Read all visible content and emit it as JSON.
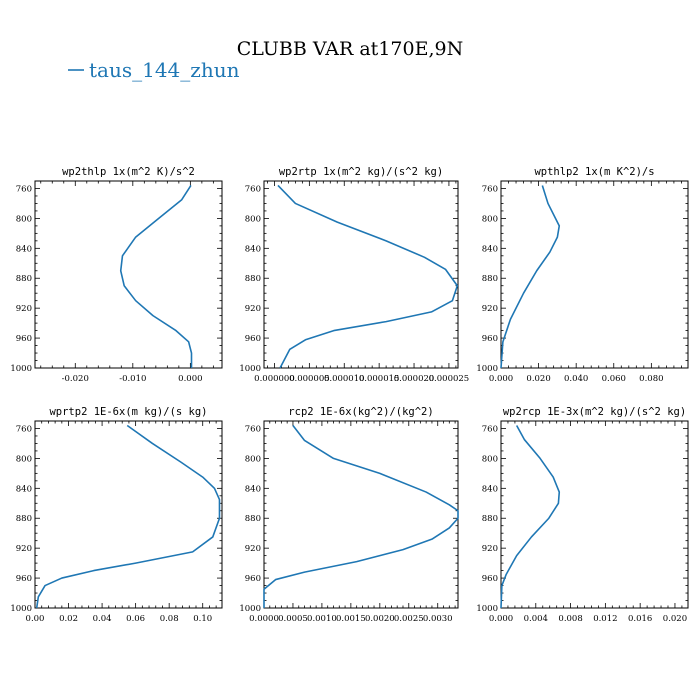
{
  "figure": {
    "title": "CLUBB VAR at170E,9N",
    "legend": {
      "label": "taus_144_zhun",
      "color": "#1f77b4"
    }
  },
  "chart_data": [
    {
      "type": "line",
      "title": "wp2thlp  1x(m^2 K)/s^2",
      "series_name": "taus_144_zhun",
      "color": "#1f77b4",
      "xlim": [
        -0.027,
        0.0055
      ],
      "ylim": [
        1000,
        750
      ],
      "x_ticks": [
        -0.02,
        -0.01,
        0.0
      ],
      "x_tick_labels": [
        "-0.020",
        "-0.010",
        "0.000"
      ],
      "y_ticks": [
        760,
        800,
        840,
        880,
        920,
        960,
        1000
      ],
      "y_tick_labels": [
        "760",
        "800",
        "840",
        "880",
        "920",
        "960",
        "1000"
      ],
      "x": [
        0.0001,
        -0.0015,
        -0.0055,
        -0.0095,
        -0.0118,
        -0.0121,
        -0.0115,
        -0.0095,
        -0.0065,
        -0.0025,
        -0.0003,
        0.0002,
        0.0002
      ],
      "y": [
        756,
        775,
        800,
        825,
        850,
        870,
        890,
        910,
        930,
        950,
        965,
        980,
        1000
      ]
    },
    {
      "type": "line",
      "title": "wp2rtp  1x(m^2 kg)/(s^2 kg)",
      "series_name": "taus_144_zhun",
      "color": "#1f77b4",
      "xlim": [
        -1.5e-06,
        2.63e-05
      ],
      "ylim": [
        1000,
        750
      ],
      "x_ticks": [
        0.0,
        5e-06,
        1e-05,
        1.5e-05,
        2e-05,
        2.5e-05
      ],
      "x_tick_labels": [
        "0.000000",
        "0.000005",
        "0.000010",
        "0.000015",
        "0.000020",
        "0.000025"
      ],
      "y_ticks": [
        760,
        800,
        840,
        880,
        920,
        960,
        1000
      ],
      "y_tick_labels": [
        "760",
        "800",
        "840",
        "880",
        "920",
        "960",
        "1000"
      ],
      "x": [
        5e-07,
        3e-06,
        9e-06,
        1.6e-05,
        2.15e-05,
        2.45e-05,
        2.62e-05,
        2.55e-05,
        2.25e-05,
        1.6e-05,
        8.5e-06,
        4.5e-06,
        2.2e-06,
        8e-07
      ],
      "y": [
        756,
        780,
        805,
        830,
        852,
        868,
        890,
        910,
        925,
        938,
        950,
        962,
        975,
        1000
      ]
    },
    {
      "type": "line",
      "title": "wpthlp2  1x(m K^2)/s",
      "series_name": "taus_144_zhun",
      "color": "#1f77b4",
      "xlim": [
        0.0,
        0.0995
      ],
      "ylim": [
        1000,
        750
      ],
      "x_ticks": [
        0.0,
        0.02,
        0.04,
        0.06,
        0.08
      ],
      "x_tick_labels": [
        "0.000",
        "0.020",
        "0.040",
        "0.060",
        "0.080"
      ],
      "y_ticks": [
        760,
        800,
        840,
        880,
        920,
        960,
        1000
      ],
      "y_tick_labels": [
        "760",
        "800",
        "840",
        "880",
        "920",
        "960",
        "1000"
      ],
      "x": [
        0.022,
        0.025,
        0.029,
        0.031,
        0.03,
        0.026,
        0.019,
        0.012,
        0.005,
        0.001,
        0.0
      ],
      "y": [
        756,
        780,
        800,
        810,
        825,
        845,
        870,
        900,
        935,
        965,
        1000
      ]
    },
    {
      "type": "line",
      "title": "wprtp2  1E-6x(m kg)/(s kg)",
      "series_name": "taus_144_zhun",
      "color": "#1f77b4",
      "xlim": [
        0.0,
        0.1115
      ],
      "ylim": [
        1000,
        750
      ],
      "x_ticks": [
        0.0,
        0.02,
        0.04,
        0.06,
        0.08,
        0.1
      ],
      "x_tick_labels": [
        "0.00",
        "0.02",
        "0.04",
        "0.06",
        "0.08",
        "0.10"
      ],
      "y_ticks": [
        760,
        800,
        840,
        880,
        920,
        960,
        1000
      ],
      "y_tick_labels": [
        "760",
        "800",
        "840",
        "880",
        "920",
        "960",
        "1000"
      ],
      "x": [
        0.055,
        0.07,
        0.087,
        0.1,
        0.107,
        0.11,
        0.11,
        0.106,
        0.094,
        0.06,
        0.035,
        0.016,
        0.006,
        0.002,
        0.001
      ],
      "y": [
        756,
        780,
        805,
        825,
        840,
        855,
        880,
        905,
        925,
        940,
        950,
        960,
        970,
        985,
        1000
      ]
    },
    {
      "type": "line",
      "title": "rcp2  1E-6x(kg^2)/(kg^2)",
      "series_name": "taus_144_zhun",
      "color": "#1f77b4",
      "xlim": [
        0.0,
        0.00335
      ],
      "ylim": [
        1000,
        750
      ],
      "x_ticks": [
        0.0,
        0.0005,
        0.001,
        0.0015,
        0.002,
        0.0025,
        0.003
      ],
      "x_tick_labels": [
        "0.0000",
        "0.0005",
        "0.0010",
        "0.0015",
        "0.0020",
        "0.0025",
        "0.0030"
      ],
      "y_ticks": [
        760,
        800,
        840,
        880,
        920,
        960,
        1000
      ],
      "y_tick_labels": [
        "760",
        "800",
        "840",
        "880",
        "920",
        "960",
        "1000"
      ],
      "x": [
        0.0005,
        0.0007,
        0.0012,
        0.002,
        0.0028,
        0.0032,
        0.00335,
        0.00335,
        0.0032,
        0.0029,
        0.0024,
        0.0016,
        0.0007,
        0.0002,
        0.0,
        0.0
      ],
      "y": [
        756,
        776,
        800,
        820,
        845,
        862,
        870,
        880,
        893,
        908,
        922,
        938,
        952,
        962,
        975,
        1000
      ]
    },
    {
      "type": "line",
      "title": "wp2rcp  1E-3x(m^2 kg)/(s^2 kg)",
      "series_name": "taus_144_zhun",
      "color": "#1f77b4",
      "xlim": [
        0.0,
        0.0215
      ],
      "ylim": [
        1000,
        750
      ],
      "x_ticks": [
        0.0,
        0.004,
        0.008,
        0.012,
        0.016,
        0.02
      ],
      "x_tick_labels": [
        "0.000",
        "0.004",
        "0.008",
        "0.012",
        "0.016",
        "0.020"
      ],
      "y_ticks": [
        760,
        800,
        840,
        880,
        920,
        960,
        1000
      ],
      "y_tick_labels": [
        "760",
        "800",
        "840",
        "880",
        "920",
        "960",
        "1000"
      ],
      "x": [
        0.0018,
        0.0027,
        0.0045,
        0.006,
        0.0067,
        0.0066,
        0.0055,
        0.0035,
        0.0018,
        0.0006,
        0.0001,
        0.0
      ],
      "y": [
        756,
        775,
        800,
        825,
        845,
        860,
        880,
        905,
        930,
        955,
        970,
        1000
      ]
    }
  ]
}
